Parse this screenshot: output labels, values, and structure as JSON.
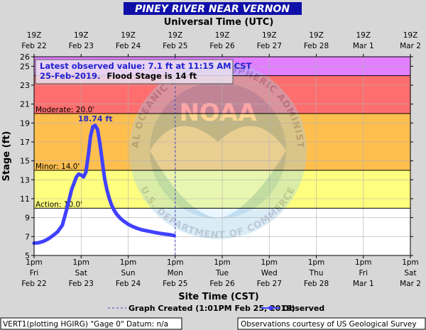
{
  "colors": {
    "background": "#d7d7d7",
    "normal_band": "#ffffff",
    "action_band": "#ffff7f",
    "minor_band": "#ffbf4f",
    "moderate_band": "#ff6e6e",
    "major_band": "#e27fff",
    "observed_line": "#4040ff",
    "title_bar": "#1010a8",
    "title_text": "#ffffff",
    "crest_label": "#2a2ac0",
    "notice_text": "#2020d0"
  },
  "title": "PINEY RIVER NEAR VERNON",
  "top_axis_title": "Universal Time (UTC)",
  "bottom_axis_title": "Site Time (CST)",
  "y_axis_title": "Stage (ft)",
  "notice": {
    "line1": "Latest observed value: 7.1 ft at 11:15 AM CST",
    "line2_date": "25-Feb-2019.",
    "line2_flood": "Flood Stage is 14 ft"
  },
  "crest_label": "18.74 ft",
  "thresholds": [
    {
      "label": "Moderate: 20.0'",
      "value": 20
    },
    {
      "label": "Minor: 14.0'",
      "value": 14
    },
    {
      "label": "Action: 10.0'",
      "value": 10
    }
  ],
  "legend": {
    "graph_created": "Graph Created (1:01PM Feb 25, 2019)",
    "observed": "Observed"
  },
  "footer": {
    "left": "VERT1(plotting HGIRG) \"Gage 0\" Datum: n/a",
    "right": "Observations courtesy of US Geological Survey"
  },
  "watermark": {
    "noaa": "NOAA",
    "ring_text": "NATIONAL OCEANIC AND ATMOSPHERIC ADMINISTRATION",
    "ring_text_bottom": "U.S. DEPARTMENT OF COMMERCE"
  },
  "chart_data": {
    "type": "line",
    "xlim": [
      0,
      8
    ],
    "ylim": [
      5,
      26
    ],
    "y_ticks": [
      5,
      7,
      9,
      11,
      13,
      15,
      17,
      19,
      21,
      23,
      25,
      26
    ],
    "x_ticks_bottom": [
      {
        "top": "1pm",
        "bottom": "Fri",
        "date": "Feb 22",
        "x": 0
      },
      {
        "top": "1pm",
        "bottom": "Sat",
        "date": "Feb 23",
        "x": 1
      },
      {
        "top": "1pm",
        "bottom": "Sun",
        "date": "Feb 24",
        "x": 2
      },
      {
        "top": "1pm",
        "bottom": "Mon",
        "date": "Feb 25",
        "x": 3
      },
      {
        "top": "1pm",
        "bottom": "Tue",
        "date": "Feb 26",
        "x": 4
      },
      {
        "top": "1pm",
        "bottom": "Wed",
        "date": "Feb 27",
        "x": 5
      },
      {
        "top": "1pm",
        "bottom": "Thu",
        "date": "Feb 28",
        "x": 6
      },
      {
        "top": "1pm",
        "bottom": "Fri",
        "date": "Mar 1",
        "x": 7
      },
      {
        "top": "1pm",
        "bottom": "Sat",
        "date": "Mar 2",
        "x": 8
      }
    ],
    "x_ticks_top": [
      {
        "top": "19Z",
        "date": "Feb 22",
        "x": 0
      },
      {
        "top": "19Z",
        "date": "Feb 23",
        "x": 1
      },
      {
        "top": "19Z",
        "date": "Feb 24",
        "x": 2
      },
      {
        "top": "19Z",
        "date": "Feb 25",
        "x": 3
      },
      {
        "top": "19Z",
        "date": "Feb 26",
        "x": 4
      },
      {
        "top": "19Z",
        "date": "Feb 27",
        "x": 5
      },
      {
        "top": "19Z",
        "date": "Feb 28",
        "x": 6
      },
      {
        "top": "19Z",
        "date": "Mar 1",
        "x": 7
      },
      {
        "top": "19Z",
        "date": "Mar 2",
        "x": 8
      }
    ],
    "graph_created_x": 3.0,
    "series": [
      {
        "name": "Observed",
        "x": [
          0.0,
          0.1,
          0.2,
          0.3,
          0.4,
          0.5,
          0.6,
          0.7,
          0.8,
          0.9,
          0.95,
          1.0,
          1.05,
          1.1,
          1.15,
          1.2,
          1.25,
          1.3,
          1.35,
          1.4,
          1.45,
          1.5,
          1.55,
          1.6,
          1.65,
          1.7,
          1.75,
          1.8,
          1.85,
          1.9,
          2.0,
          2.1,
          2.2,
          2.3,
          2.4,
          2.5,
          2.6,
          2.7,
          2.8,
          2.9,
          2.98
        ],
        "y": [
          6.3,
          6.35,
          6.5,
          6.75,
          7.1,
          7.5,
          8.2,
          10.0,
          12.0,
          13.3,
          13.6,
          13.5,
          13.3,
          13.8,
          15.5,
          17.6,
          18.6,
          18.74,
          18.3,
          16.8,
          14.9,
          13.1,
          11.9,
          11.0,
          10.3,
          9.8,
          9.4,
          9.1,
          8.85,
          8.65,
          8.3,
          8.05,
          7.85,
          7.7,
          7.6,
          7.5,
          7.4,
          7.32,
          7.25,
          7.18,
          7.1
        ]
      }
    ]
  }
}
